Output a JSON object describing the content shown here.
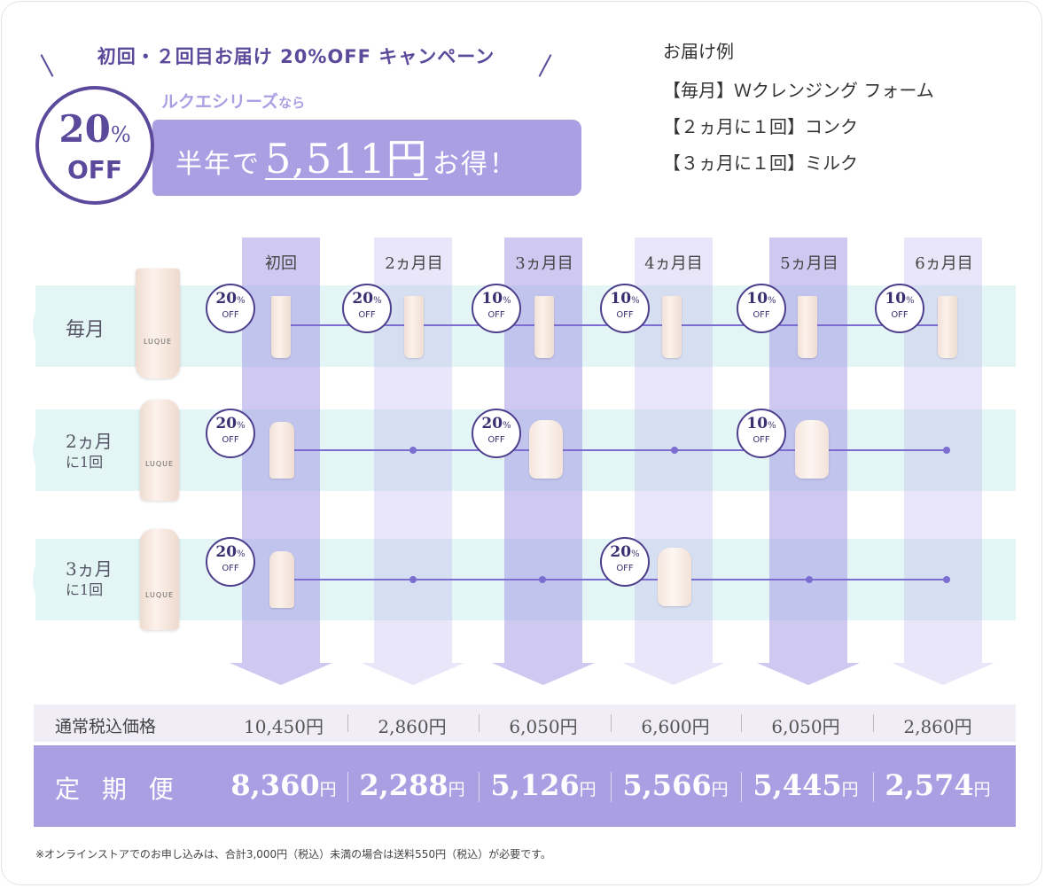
{
  "campaign": {
    "headline": "初回・２回目お届け 20%OFF キャンペーン",
    "series_label": "ルクエシリーズ",
    "series_suffix": "なら",
    "badge_pct": "20",
    "badge_pct_sign": "%",
    "badge_off": "OFF",
    "banner_prefix": "半年で",
    "banner_amount": "5,511円",
    "banner_suffix": "お得！"
  },
  "example": {
    "title": "お届け例",
    "items": [
      "【毎月】Ｗクレンジング フォーム",
      "【２ヵ月に１回】コンク",
      "【３ヵ月に１回】ミルク"
    ]
  },
  "months": [
    "初回",
    "2ヵ月目",
    "3ヵ月目",
    "4ヵ月目",
    "5ヵ月目",
    "6ヵ月目"
  ],
  "rows": [
    {
      "label": "毎月",
      "discounts": [
        "20",
        "20",
        "10",
        "10",
        "10",
        "10"
      ]
    },
    {
      "label_line1": "2ヵ月",
      "label_line2": "に1回",
      "discounts": [
        "20",
        "20",
        "10"
      ]
    },
    {
      "label_line1": "3ヵ月",
      "label_line2": "に1回",
      "discounts": [
        "20",
        "20"
      ]
    }
  ],
  "pct_sign": "%",
  "off_label": "OFF",
  "brand_name": "LUQUE",
  "prices": {
    "normal_label": "通常税込価格",
    "normal": [
      "10,450円",
      "2,860円",
      "6,050円",
      "6,600円",
      "6,050円",
      "2,860円"
    ],
    "teiki_label": "定 期 便",
    "teiki": [
      "8,360",
      "2,288",
      "5,126",
      "5,566",
      "5,445",
      "2,574"
    ],
    "yen": "円"
  },
  "note": "※オンラインストアでのお申し込みは、合計3,000円（税込）未満の場合は送料550円（税込）が必要です。",
  "colors": {
    "purple_dark": "#5b4a9b",
    "purple_light": "#ab9fe4",
    "mint": "#e3f5f4"
  }
}
